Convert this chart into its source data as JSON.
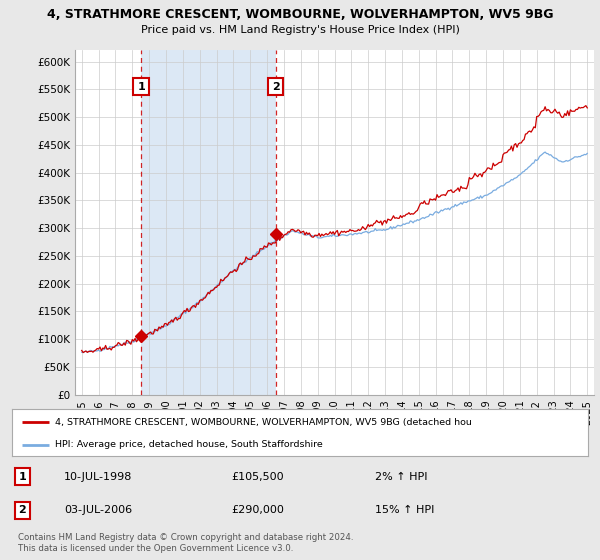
{
  "title": "4, STRATHMORE CRESCENT, WOMBOURNE, WOLVERHAMPTON, WV5 9BG",
  "subtitle": "Price paid vs. HM Land Registry's House Price Index (HPI)",
  "ylim": [
    0,
    620000
  ],
  "yticks": [
    0,
    50000,
    100000,
    150000,
    200000,
    250000,
    300000,
    350000,
    400000,
    450000,
    500000,
    550000,
    600000
  ],
  "ytick_labels": [
    "£0",
    "£50K",
    "£100K",
    "£150K",
    "£200K",
    "£250K",
    "£300K",
    "£350K",
    "£400K",
    "£450K",
    "£500K",
    "£550K",
    "£600K"
  ],
  "sale1_x": 1998.53,
  "sale1_y": 105500,
  "sale2_x": 2006.51,
  "sale2_y": 290000,
  "legend_line1": "4, STRATHMORE CRESCENT, WOMBOURNE, WOLVERHAMPTON, WV5 9BG (detached hou",
  "legend_line2": "HPI: Average price, detached house, South Staffordshire",
  "annot1_label": "1",
  "annot1_date": "10-JUL-1998",
  "annot1_price": "£105,500",
  "annot1_hpi": "2% ↑ HPI",
  "annot2_label": "2",
  "annot2_date": "03-JUL-2006",
  "annot2_price": "£290,000",
  "annot2_hpi": "15% ↑ HPI",
  "footer": "Contains HM Land Registry data © Crown copyright and database right 2024.\nThis data is licensed under the Open Government Licence v3.0.",
  "red_color": "#cc0000",
  "blue_color": "#7aace0",
  "bg_color": "#e8e8e8",
  "plot_bg": "#ffffff",
  "shade_bg": "#dce8f5",
  "grid_color": "#cccccc",
  "vline_color": "#cc0000",
  "xlim_left": 1994.6,
  "xlim_right": 2025.4
}
